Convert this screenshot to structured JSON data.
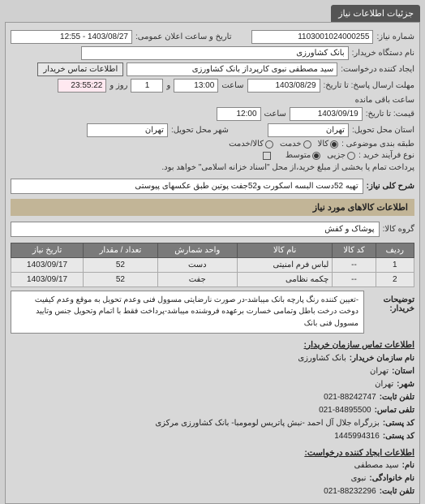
{
  "tab_title": "جزئیات اطلاعات نیاز",
  "header": {
    "req_no_label": "شماره نیاز:",
    "req_no": "1103001024000255",
    "announce_label": "تاریخ و ساعت اعلان عمومی:",
    "announce_value": "1403/08/27 - 12:55",
    "buyer_org_label": "نام دستگاه خریدار:",
    "buyer_org": "بانک کشاورزی",
    "creator_label": "ایجاد کننده درخواست:",
    "creator": "سید مصطفی نبوی کارپرداز بانک کشاورزی",
    "contact_btn": "اطلاعات تماس خریدار"
  },
  "deadlines": {
    "resp_label": "مهلت ارسال پاسخ: تا تاریخ:",
    "resp_date": "1403/08/29",
    "resp_time_label": "ساعت",
    "resp_time": "13:00",
    "resp_and": "و",
    "resp_days": "1",
    "resp_days_label": "روز و",
    "resp_remain": "23:55:22",
    "resp_remain_label": "ساعت باقی مانده",
    "price_label": "قیمت: تا تاریخ:",
    "price_date": "1403/09/19",
    "price_time_label": "ساعت",
    "price_time": "12:00"
  },
  "location": {
    "province_label": "استان محل تحویل:",
    "province": "تهران",
    "city_label": "شهر محل تحویل:",
    "city": "تهران"
  },
  "classification": {
    "subject_label": "طبقه بندی موضوعی :",
    "subject_opts": [
      "کالا",
      "خدمت",
      "کالا/خدمت"
    ],
    "subject_sel": 0,
    "proc_label": "نوع فرآیند خرید :",
    "proc_opts": [
      "متوسط",
      "جزیی"
    ],
    "proc_sel": 0,
    "proc_note": "پرداخت تمام یا بخشی از مبلغ خرید،از محل \"اسناد خزانه اسلامی\" خواهد بود.",
    "checkbox_checked": false
  },
  "need": {
    "label": "شرح کلی نیاز:",
    "text": "تهیه 52دست البسه اسکورت و52جفت پوتین طبق عکسهای پیوستی"
  },
  "goods_section": "اطلاعات کالاهای مورد نیاز",
  "group_label": "گروه کالا:",
  "group_value": "پوشاک و کفش",
  "table": {
    "headers": [
      "ردیف",
      "کد کالا",
      "نام کالا",
      "واحد شمارش",
      "تعداد / مقدار",
      "تاریخ نیاز"
    ],
    "rows": [
      [
        "1",
        "--",
        "لباس فرم امنیتی",
        "دست",
        "52",
        "1403/09/17"
      ],
      [
        "2",
        "--",
        "چکمه نظامی",
        "جفت",
        "52",
        "1403/09/17"
      ]
    ],
    "col_align": [
      "center",
      "center",
      "right",
      "center",
      "center",
      "center"
    ]
  },
  "buyer_desc": {
    "label": "توضیحات خریدار:",
    "text": "-تعیین کننده رنگ پارچه بانک میباشد-در صورت نارضایتی مسوول فنی وعدم تحویل به موقع وعدم کیفیت دوخت درخت باطل وتمامی خسارت برعهده فروشنده میباشد-پرداخت فقط با اتمام وتحویل جنس وتایید مسوول فنی بانک"
  },
  "contacts": {
    "org_hdr": "اطلاعات تماس سازمان خریدار:",
    "org_name_l": "نام سازمان خریدار:",
    "org_name": "بانک کشاورزی",
    "province_l": "استان:",
    "province": "تهران",
    "city_l": "شهر:",
    "city": "تهران",
    "tel_l": "تلفن ثابت:",
    "tel": "021-88242747",
    "fax_l": "تلفی تماس:",
    "fax": "021-84895500",
    "addr_l": "کد پستی:",
    "addr": "بزرگراه جلال آل احمد -نبش پاتریس لومومبا- بانک کشاورزی مرکزی",
    "post_l": "کد پستی:",
    "post": "1445994316",
    "creator_hdr": "اطلاعات ایجاد کننده درخواست:",
    "cname_l": "نام:",
    "cname": "سید مصطفی",
    "clast_l": "نام خانوادگی:",
    "clast": "نبوی",
    "ctel_l": "تلفن ثابت:",
    "ctel": "021-88232296"
  }
}
